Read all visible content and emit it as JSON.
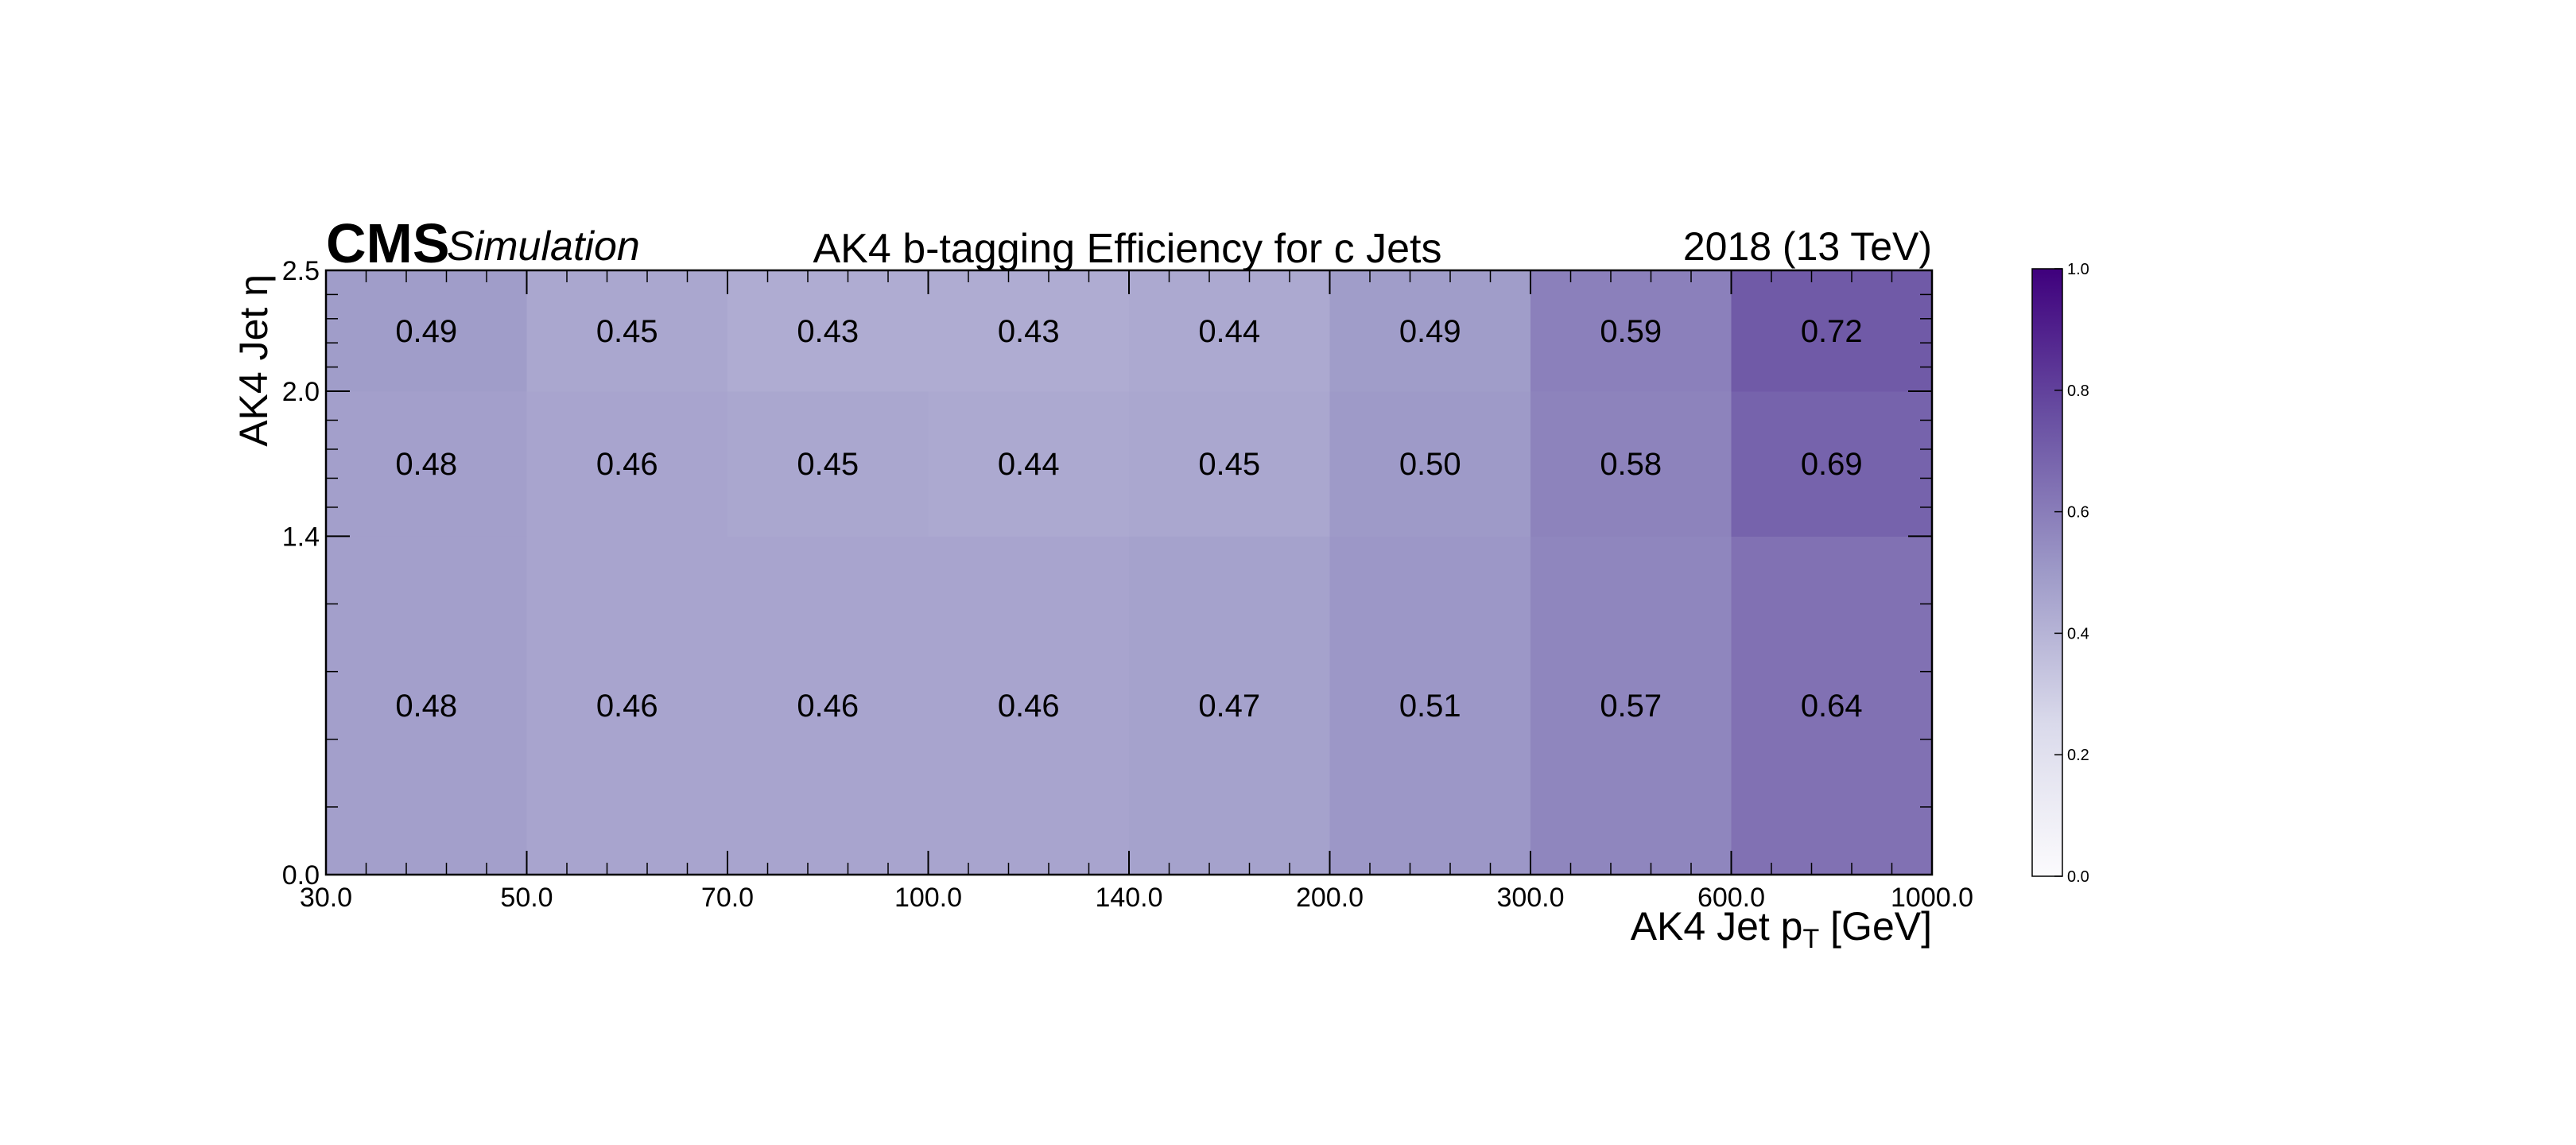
{
  "chart_data": {
    "type": "heatmap",
    "title": "AK4 b-tagging Efficiency for c Jets",
    "experiment_label": "CMS",
    "experiment_sublabel": "Simulation",
    "lumi_label": "2018 (13 TeV)",
    "xlabel_main": "AK4 Jet p",
    "xlabel_sub": "T",
    "xlabel_unit": " [GeV]",
    "ylabel": "AK4 Jet η",
    "x_edges": [
      30,
      50,
      70,
      100,
      140,
      200,
      300,
      600,
      1000
    ],
    "x_tick_labels": [
      "30.0",
      "50.0",
      "70.0",
      "100.0",
      "140.0",
      "200.0",
      "300.0",
      "600.0",
      "1000.0"
    ],
    "y_edges": [
      0,
      1.4,
      2.0,
      2.5
    ],
    "y_tick_labels": [
      "0.0",
      "1.4",
      "2.0",
      "2.5"
    ],
    "values": [
      [
        0.48,
        0.46,
        0.46,
        0.46,
        0.47,
        0.51,
        0.57,
        0.64
      ],
      [
        0.48,
        0.46,
        0.45,
        0.44,
        0.45,
        0.5,
        0.58,
        0.69
      ],
      [
        0.49,
        0.45,
        0.43,
        0.43,
        0.44,
        0.49,
        0.59,
        0.72
      ]
    ],
    "value_labels": [
      [
        "0.48",
        "0.46",
        "0.46",
        "0.46",
        "0.47",
        "0.51",
        "0.57",
        "0.64"
      ],
      [
        "0.48",
        "0.46",
        "0.45",
        "0.44",
        "0.45",
        "0.50",
        "0.58",
        "0.69"
      ],
      [
        "0.49",
        "0.45",
        "0.43",
        "0.43",
        "0.44",
        "0.49",
        "0.59",
        "0.72"
      ]
    ],
    "colorbar": {
      "range": [
        0,
        1
      ],
      "ticks": [
        0.0,
        0.2,
        0.4,
        0.6,
        0.8,
        1.0
      ],
      "tick_labels": [
        "0.0",
        "0.2",
        "0.4",
        "0.6",
        "0.8",
        "1.0"
      ],
      "color_low": "#fcfbfd",
      "color_high": "#3f007d"
    }
  }
}
